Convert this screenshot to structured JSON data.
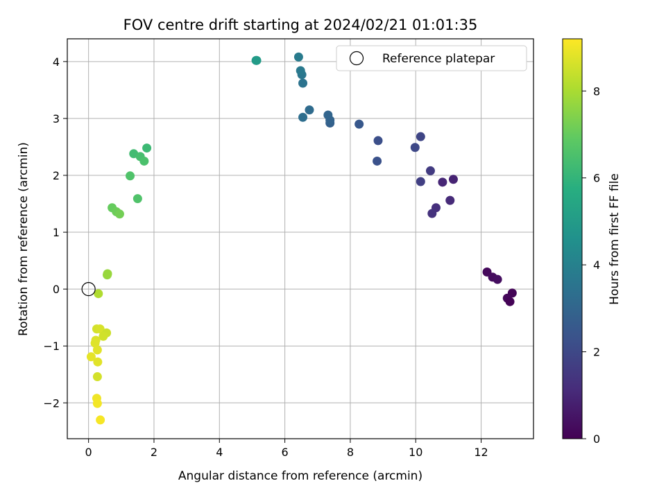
{
  "chart_data": {
    "type": "scatter",
    "title": "FOV centre drift starting at 2024/02/21 01:01:35",
    "xlabel": "Angular distance from reference (arcmin)",
    "ylabel": "Rotation from reference (arcmin)",
    "xlim": [
      -0.65,
      13.6
    ],
    "ylim": [
      -2.63,
      4.4
    ],
    "xticks": [
      0,
      2,
      4,
      6,
      8,
      10,
      12
    ],
    "yticks": [
      -2,
      -1,
      0,
      1,
      2,
      3,
      4
    ],
    "grid": true,
    "legend": {
      "placement": "top-right",
      "entries": [
        "Reference platepar"
      ]
    },
    "reference_point": {
      "x": 0,
      "y": 0
    },
    "colorbar": {
      "label": "Hours from first FF file",
      "colormap": "viridis",
      "range": [
        0,
        9.2
      ],
      "ticks": [
        0,
        2,
        4,
        6,
        8
      ]
    },
    "points": [
      {
        "x": 12.18,
        "y": 0.3,
        "c": 0.2
      },
      {
        "x": 12.35,
        "y": 0.21,
        "c": 0.3
      },
      {
        "x": 12.5,
        "y": 0.17,
        "c": 0.35
      },
      {
        "x": 12.95,
        "y": -0.07,
        "c": 0.1
      },
      {
        "x": 12.8,
        "y": -0.16,
        "c": 0.15
      },
      {
        "x": 12.88,
        "y": -0.22,
        "c": 0.05
      },
      {
        "x": 11.15,
        "y": 1.93,
        "c": 0.9
      },
      {
        "x": 10.82,
        "y": 1.88,
        "c": 1.0
      },
      {
        "x": 11.05,
        "y": 1.56,
        "c": 1.1
      },
      {
        "x": 10.62,
        "y": 1.43,
        "c": 1.2
      },
      {
        "x": 10.5,
        "y": 1.33,
        "c": 1.3
      },
      {
        "x": 10.45,
        "y": 2.08,
        "c": 1.6
      },
      {
        "x": 10.15,
        "y": 1.89,
        "c": 1.7
      },
      {
        "x": 10.15,
        "y": 2.68,
        "c": 1.9
      },
      {
        "x": 9.98,
        "y": 2.49,
        "c": 2.0
      },
      {
        "x": 8.85,
        "y": 2.61,
        "c": 2.2
      },
      {
        "x": 8.82,
        "y": 2.25,
        "c": 2.3
      },
      {
        "x": 8.27,
        "y": 2.9,
        "c": 2.5
      },
      {
        "x": 7.38,
        "y": 2.92,
        "c": 2.8
      },
      {
        "x": 7.38,
        "y": 2.97,
        "c": 2.9
      },
      {
        "x": 7.32,
        "y": 3.06,
        "c": 3.0
      },
      {
        "x": 6.75,
        "y": 3.15,
        "c": 3.2
      },
      {
        "x": 6.55,
        "y": 3.02,
        "c": 3.3
      },
      {
        "x": 6.55,
        "y": 3.62,
        "c": 3.5
      },
      {
        "x": 6.52,
        "y": 3.77,
        "c": 3.6
      },
      {
        "x": 6.48,
        "y": 3.84,
        "c": 3.7
      },
      {
        "x": 6.42,
        "y": 4.08,
        "c": 3.8
      },
      {
        "x": 5.12,
        "y": 4.02,
        "c": 4.9
      },
      {
        "x": 5.14,
        "y": 4.02,
        "c": 5.0
      },
      {
        "x": 1.78,
        "y": 2.48,
        "c": 6.2
      },
      {
        "x": 1.38,
        "y": 2.38,
        "c": 6.3
      },
      {
        "x": 1.58,
        "y": 2.33,
        "c": 6.4
      },
      {
        "x": 1.7,
        "y": 2.25,
        "c": 6.5
      },
      {
        "x": 1.27,
        "y": 1.99,
        "c": 6.6
      },
      {
        "x": 1.5,
        "y": 1.59,
        "c": 6.6
      },
      {
        "x": 0.72,
        "y": 1.43,
        "c": 7.0
      },
      {
        "x": 0.85,
        "y": 1.36,
        "c": 7.1
      },
      {
        "x": 0.95,
        "y": 1.32,
        "c": 7.2
      },
      {
        "x": 0.57,
        "y": 0.25,
        "c": 7.7
      },
      {
        "x": 0.58,
        "y": 0.27,
        "c": 7.75
      },
      {
        "x": 0.3,
        "y": -0.08,
        "c": 8.1
      },
      {
        "x": 0.25,
        "y": -0.7,
        "c": 8.6
      },
      {
        "x": 0.35,
        "y": -0.7,
        "c": 8.65
      },
      {
        "x": 0.55,
        "y": -0.77,
        "c": 8.5
      },
      {
        "x": 0.45,
        "y": -0.83,
        "c": 8.55
      },
      {
        "x": 0.22,
        "y": -0.9,
        "c": 8.7
      },
      {
        "x": 0.2,
        "y": -0.95,
        "c": 8.75
      },
      {
        "x": 0.27,
        "y": -1.07,
        "c": 8.8
      },
      {
        "x": 0.08,
        "y": -1.19,
        "c": 8.85
      },
      {
        "x": 0.28,
        "y": -1.28,
        "c": 8.8
      },
      {
        "x": 0.27,
        "y": -1.54,
        "c": 8.6
      },
      {
        "x": 0.25,
        "y": -1.92,
        "c": 9.0
      },
      {
        "x": 0.27,
        "y": -2.01,
        "c": 9.05
      },
      {
        "x": 0.36,
        "y": -2.3,
        "c": 9.1
      }
    ]
  }
}
